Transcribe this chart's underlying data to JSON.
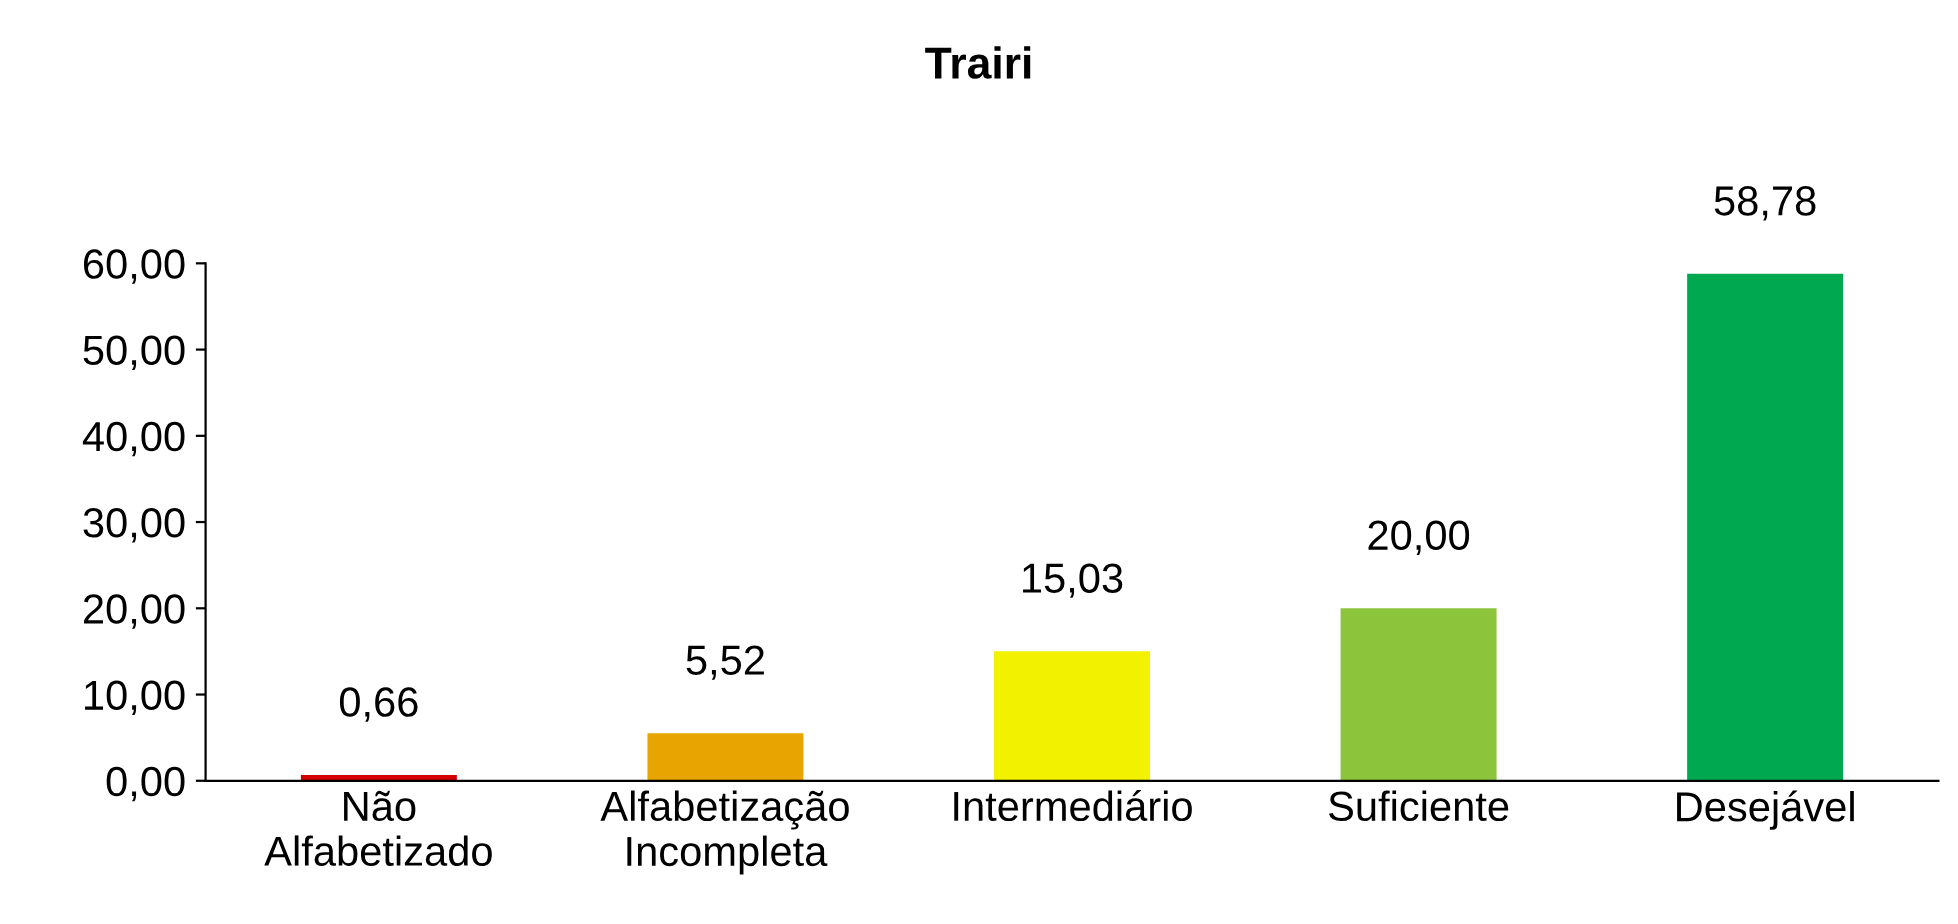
{
  "chart_data": {
    "type": "bar",
    "title": "Trairi",
    "categories": [
      "Não\nAlfabetizado",
      "Alfabetização\nIncompleta",
      "Intermediário",
      "Suficiente",
      "Desejável"
    ],
    "values": [
      0.66,
      5.52,
      15.03,
      20.0,
      58.78
    ],
    "colors": [
      "#d40000",
      "#e8a400",
      "#f2f200",
      "#8cc43c",
      "#00a84f"
    ],
    "value_labels": [
      "0,66",
      "5,52",
      "15,03",
      "20,00",
      "58,78"
    ],
    "ylim": [
      0,
      60
    ],
    "yticks": [
      {
        "value": 0,
        "label": "0,00"
      },
      {
        "value": 10,
        "label": "10,00"
      },
      {
        "value": 20,
        "label": "20,00"
      },
      {
        "value": 30,
        "label": "30,00"
      },
      {
        "value": 40,
        "label": "40,00"
      },
      {
        "value": 50,
        "label": "50,00"
      },
      {
        "value": 60,
        "label": "60,00"
      }
    ],
    "grid": false,
    "legend": false
  }
}
